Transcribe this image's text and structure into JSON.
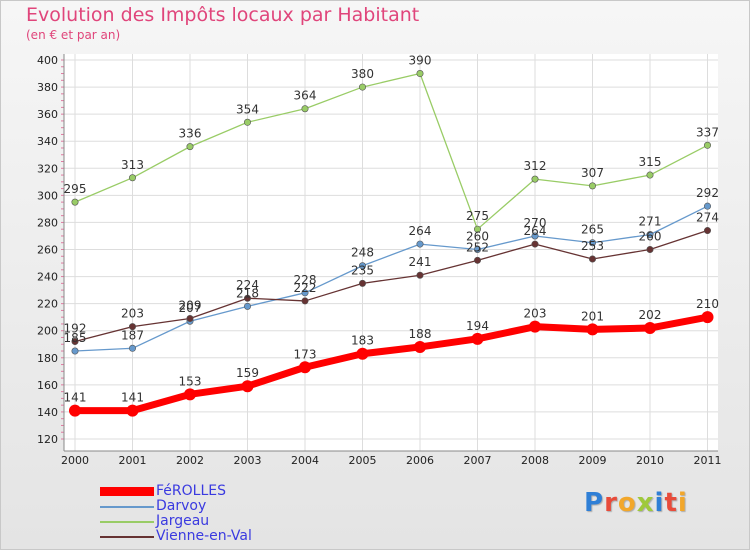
{
  "header": {
    "title": "Evolution des Impôts locaux par Habitant",
    "subtitle": "(en € et par an)"
  },
  "brand": {
    "text": "Proxiti",
    "colors": [
      "#2f7fd6",
      "#e84b3a",
      "#f2a72b",
      "#9fc93c",
      "#2f7fd6",
      "#e84b3a",
      "#f2a72b"
    ]
  },
  "chart_data": {
    "type": "line",
    "title": "Evolution des Impôts locaux par Habitant",
    "subtitle": "(en € et par an)",
    "xlabel": "",
    "ylabel": "",
    "categories": [
      "2000",
      "2001",
      "2002",
      "2003",
      "2004",
      "2005",
      "2006",
      "2007",
      "2008",
      "2009",
      "2010",
      "2011"
    ],
    "yticks": [
      120,
      140,
      160,
      180,
      200,
      220,
      240,
      260,
      280,
      300,
      320,
      340,
      360,
      380,
      400
    ],
    "ylim": [
      120,
      400
    ],
    "grid": true,
    "legend_position": "bottom-left",
    "series": [
      {
        "name": "FéROLLES",
        "color": "#ff0000",
        "values": [
          141,
          141,
          153,
          159,
          173,
          183,
          188,
          194,
          203,
          201,
          202,
          210
        ]
      },
      {
        "name": "Darvoy",
        "color": "#6699cc",
        "values": [
          185,
          187,
          207,
          218,
          228,
          248,
          264,
          260,
          270,
          265,
          271,
          292
        ]
      },
      {
        "name": "Jargeau",
        "color": "#99cc66",
        "values": [
          295,
          313,
          336,
          354,
          364,
          380,
          390,
          275,
          312,
          307,
          315,
          337
        ]
      },
      {
        "name": "Vienne-en-Val",
        "color": "#663333",
        "values": [
          192,
          203,
          209,
          224,
          222,
          235,
          241,
          252,
          264,
          253,
          260,
          274
        ]
      }
    ]
  }
}
